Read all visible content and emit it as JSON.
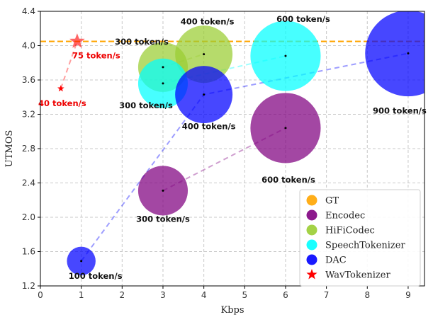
{
  "chart_data": {
    "type": "scatter",
    "title": "",
    "xlabel": "Kbps",
    "ylabel": "UTMOS",
    "xlim": [
      0,
      9.4
    ],
    "ylim": [
      1.2,
      4.4
    ],
    "xticks": [
      0,
      1,
      2,
      3,
      4,
      5,
      6,
      7,
      8,
      9
    ],
    "yticks": [
      1.2,
      1.6,
      2.0,
      2.4,
      2.8,
      3.2,
      3.6,
      4.0,
      4.4
    ],
    "grid": true,
    "legend_position": "bottom-right",
    "gt_line": {
      "name": "GT",
      "y": 4.05,
      "color": "#ffa500"
    },
    "series": [
      {
        "name": "Encodec",
        "color": "#800080",
        "points": [
          {
            "x": 3,
            "y": 2.31,
            "size": 300,
            "label": "300 token/s"
          },
          {
            "x": 6,
            "y": 3.04,
            "size": 600,
            "label": "600 token/s"
          }
        ]
      },
      {
        "name": "HiFiCodec",
        "color": "#9acd32",
        "points": [
          {
            "x": 3,
            "y": 3.75,
            "size": 300,
            "label": "300 token/s"
          },
          {
            "x": 4,
            "y": 3.9,
            "size": 400,
            "label": "400 token/s"
          }
        ]
      },
      {
        "name": "SpeechTokenizer",
        "color": "#00ffff",
        "points": [
          {
            "x": 3,
            "y": 3.56,
            "size": 300,
            "label": "300 token/s"
          },
          {
            "x": 6,
            "y": 3.88,
            "size": 600,
            "label": "600 token/s"
          }
        ]
      },
      {
        "name": "DAC",
        "color": "#0000ff",
        "points": [
          {
            "x": 1,
            "y": 1.49,
            "size": 100,
            "label": "100 token/s"
          },
          {
            "x": 4,
            "y": 3.43,
            "size": 400,
            "label": "400 token/s"
          },
          {
            "x": 9,
            "y": 3.91,
            "size": 900,
            "label": "900 token/s"
          }
        ]
      },
      {
        "name": "WavTokenizer",
        "color": "#ff0000",
        "marker": "star",
        "points": [
          {
            "x": 0.5,
            "y": 3.5,
            "size": 40,
            "label": "40 token/s"
          },
          {
            "x": 0.9,
            "y": 4.05,
            "size": 75,
            "label": "75 token/s"
          }
        ]
      }
    ]
  }
}
